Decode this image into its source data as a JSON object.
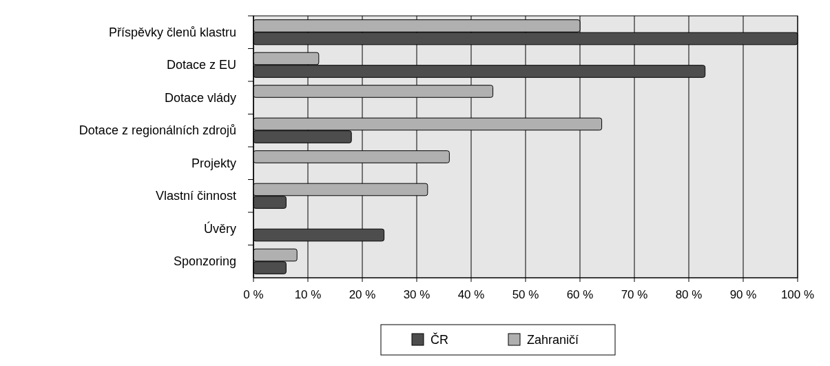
{
  "chart_data": {
    "type": "bar",
    "orientation": "horizontal",
    "categories": [
      "Příspěvky členů klastru",
      "Dotace z EU",
      "Dotace vlády",
      "Dotace z regionálních zdrojů",
      "Projekty",
      "Vlastní činnost",
      "Úvěry",
      "Sponzoring"
    ],
    "series": [
      {
        "name": "Zahraničí",
        "color": "#b0b0b0",
        "values": [
          60,
          12,
          44,
          64,
          36,
          32,
          0,
          8
        ]
      },
      {
        "name": "ČR",
        "color": "#4d4d4d",
        "values": [
          100,
          83,
          0,
          18,
          0,
          6,
          24,
          6
        ]
      }
    ],
    "xlim": [
      0,
      100
    ],
    "xticks": [
      {
        "value": 0,
        "label": "0 %"
      },
      {
        "value": 10,
        "label": "10 %"
      },
      {
        "value": 20,
        "label": "20 %"
      },
      {
        "value": 30,
        "label": "30 %"
      },
      {
        "value": 40,
        "label": "40 %"
      },
      {
        "value": 50,
        "label": "50 %"
      },
      {
        "value": 60,
        "label": "60 %"
      },
      {
        "value": 70,
        "label": "70 %"
      },
      {
        "value": 80,
        "label": "80 %"
      },
      {
        "value": 90,
        "label": "90 %"
      },
      {
        "value": 100,
        "label": "100 %"
      }
    ],
    "grid": "x",
    "legend": "bottom"
  }
}
